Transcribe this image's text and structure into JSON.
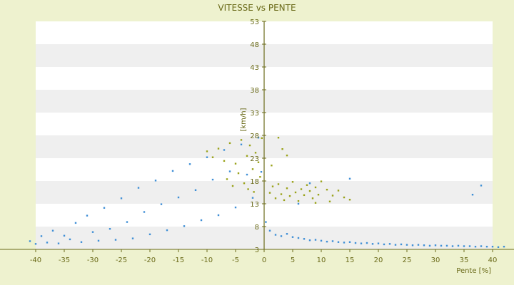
{
  "chart_data": {
    "type": "scatter",
    "title": "VITESSE vs PENTE",
    "xlabel": "Pente [%]",
    "ylabel": "[km/h]",
    "xlim": [
      -40,
      40
    ],
    "ylim": [
      3,
      53
    ],
    "xticks": [
      -40,
      -35,
      -30,
      -25,
      -20,
      -15,
      -10,
      -5,
      0,
      5,
      10,
      15,
      20,
      25,
      30,
      35,
      40
    ],
    "yticks": [
      3,
      8,
      13,
      18,
      23,
      28,
      33,
      38,
      43,
      48,
      53
    ],
    "grid": "horizontal bands",
    "legend": "none",
    "colors": {
      "background": "#eef2cf",
      "plot_band_light": "#ffffff",
      "plot_band_dark": "#efefef",
      "axis": "#6b6b1a",
      "blue_series": "#3f8fd6",
      "olive_series": "#9aa21a"
    },
    "series": [
      {
        "color": "#3f8fd6",
        "points": [
          [
            -41,
            4.8
          ],
          [
            -40,
            4.2
          ],
          [
            -39,
            5.9
          ],
          [
            -38,
            4.5
          ],
          [
            -37,
            7.1
          ],
          [
            -36,
            4.3
          ],
          [
            -35,
            6.0
          ],
          [
            -34,
            5.2
          ],
          [
            -33,
            8.8
          ],
          [
            -32,
            4.6
          ],
          [
            -31,
            10.4
          ],
          [
            -30,
            6.8
          ],
          [
            -29,
            4.9
          ],
          [
            -28,
            12.1
          ],
          [
            -27,
            7.5
          ],
          [
            -26,
            5.1
          ],
          [
            -25,
            14.2
          ],
          [
            -24,
            9.0
          ],
          [
            -23,
            5.4
          ],
          [
            -22,
            16.5
          ],
          [
            -21,
            11.2
          ],
          [
            -20,
            6.3
          ],
          [
            -19,
            18.1
          ],
          [
            -18,
            12.9
          ],
          [
            -17,
            7.2
          ],
          [
            -16,
            20.2
          ],
          [
            -15,
            14.4
          ],
          [
            -14,
            8.1
          ],
          [
            -13,
            21.7
          ],
          [
            -12,
            16.0
          ],
          [
            -11,
            9.4
          ],
          [
            -10,
            23.2
          ],
          [
            -9,
            18.3
          ],
          [
            -8,
            10.5
          ],
          [
            -7,
            24.8
          ],
          [
            -6,
            20.1
          ],
          [
            -5,
            12.2
          ],
          [
            -4,
            26.0
          ],
          [
            -3,
            19.4
          ],
          [
            -2,
            14.3
          ],
          [
            -1,
            27.5
          ],
          [
            -0.5,
            20.0
          ],
          [
            0.3,
            9.0
          ],
          [
            1,
            7.1
          ],
          [
            2,
            6.2
          ],
          [
            3,
            5.9
          ],
          [
            4,
            6.4
          ],
          [
            5,
            5.7
          ],
          [
            6,
            5.5
          ],
          [
            7,
            5.3
          ],
          [
            8,
            5.0
          ],
          [
            9,
            5.1
          ],
          [
            10,
            4.9
          ],
          [
            11,
            4.7
          ],
          [
            12,
            4.8
          ],
          [
            13,
            4.6
          ],
          [
            14,
            4.5
          ],
          [
            15,
            4.6
          ],
          [
            16,
            4.4
          ],
          [
            17,
            4.3
          ],
          [
            18,
            4.4
          ],
          [
            19,
            4.2
          ],
          [
            20,
            4.3
          ],
          [
            21,
            4.1
          ],
          [
            22,
            4.2
          ],
          [
            23,
            4.0
          ],
          [
            24,
            4.1
          ],
          [
            25,
            4.0
          ],
          [
            26,
            3.9
          ],
          [
            27,
            4.0
          ],
          [
            28,
            3.9
          ],
          [
            29,
            3.8
          ],
          [
            30,
            3.9
          ],
          [
            31,
            3.8
          ],
          [
            32,
            3.8
          ],
          [
            33,
            3.7
          ],
          [
            34,
            3.8
          ],
          [
            35,
            3.7
          ],
          [
            36,
            3.7
          ],
          [
            37,
            3.6
          ],
          [
            38,
            3.7
          ],
          [
            39,
            3.6
          ],
          [
            40,
            3.6
          ],
          [
            41,
            3.5
          ],
          [
            42,
            3.6
          ],
          [
            6,
            13.0
          ],
          [
            8,
            17.5
          ],
          [
            15,
            18.5
          ],
          [
            36.5,
            15.0
          ],
          [
            38,
            17.0
          ]
        ]
      },
      {
        "color": "#9aa21a",
        "points": [
          [
            -10,
            24.5
          ],
          [
            -9,
            23.2
          ],
          [
            -8,
            25.1
          ],
          [
            -7,
            22.4
          ],
          [
            -6,
            26.3
          ],
          [
            -5,
            21.8
          ],
          [
            -4,
            27.0
          ],
          [
            -3,
            23.5
          ],
          [
            -2.5,
            25.8
          ],
          [
            -2,
            20.6
          ],
          [
            -1.5,
            24.2
          ],
          [
            -1,
            22.1
          ],
          [
            -0.7,
            18.9
          ],
          [
            -4.5,
            19.7
          ],
          [
            -3.5,
            17.5
          ],
          [
            -2.8,
            16.2
          ],
          [
            -1.8,
            15.6
          ],
          [
            -6.5,
            18.4
          ],
          [
            -5.5,
            16.9
          ],
          [
            -0.4,
            27.4
          ],
          [
            1,
            15.4
          ],
          [
            1.5,
            16.8
          ],
          [
            2,
            14.2
          ],
          [
            2.5,
            17.3
          ],
          [
            3,
            15.1
          ],
          [
            3.5,
            13.8
          ],
          [
            4,
            16.4
          ],
          [
            4.5,
            14.7
          ],
          [
            5,
            17.8
          ],
          [
            5.5,
            15.5
          ],
          [
            6,
            13.6
          ],
          [
            6.5,
            16.2
          ],
          [
            7,
            14.9
          ],
          [
            7.5,
            17.1
          ],
          [
            8,
            15.8
          ],
          [
            8.5,
            14.2
          ],
          [
            9,
            16.6
          ],
          [
            9.5,
            15.0
          ],
          [
            10,
            17.9
          ],
          [
            11,
            16.1
          ],
          [
            12,
            14.8
          ],
          [
            13,
            15.9
          ],
          [
            14,
            14.4
          ],
          [
            15,
            13.9
          ],
          [
            2.5,
            27.5
          ],
          [
            3.2,
            25.0
          ],
          [
            4,
            23.6
          ],
          [
            1.3,
            21.4
          ],
          [
            11.5,
            13.5
          ],
          [
            9,
            13.2
          ]
        ]
      }
    ]
  }
}
